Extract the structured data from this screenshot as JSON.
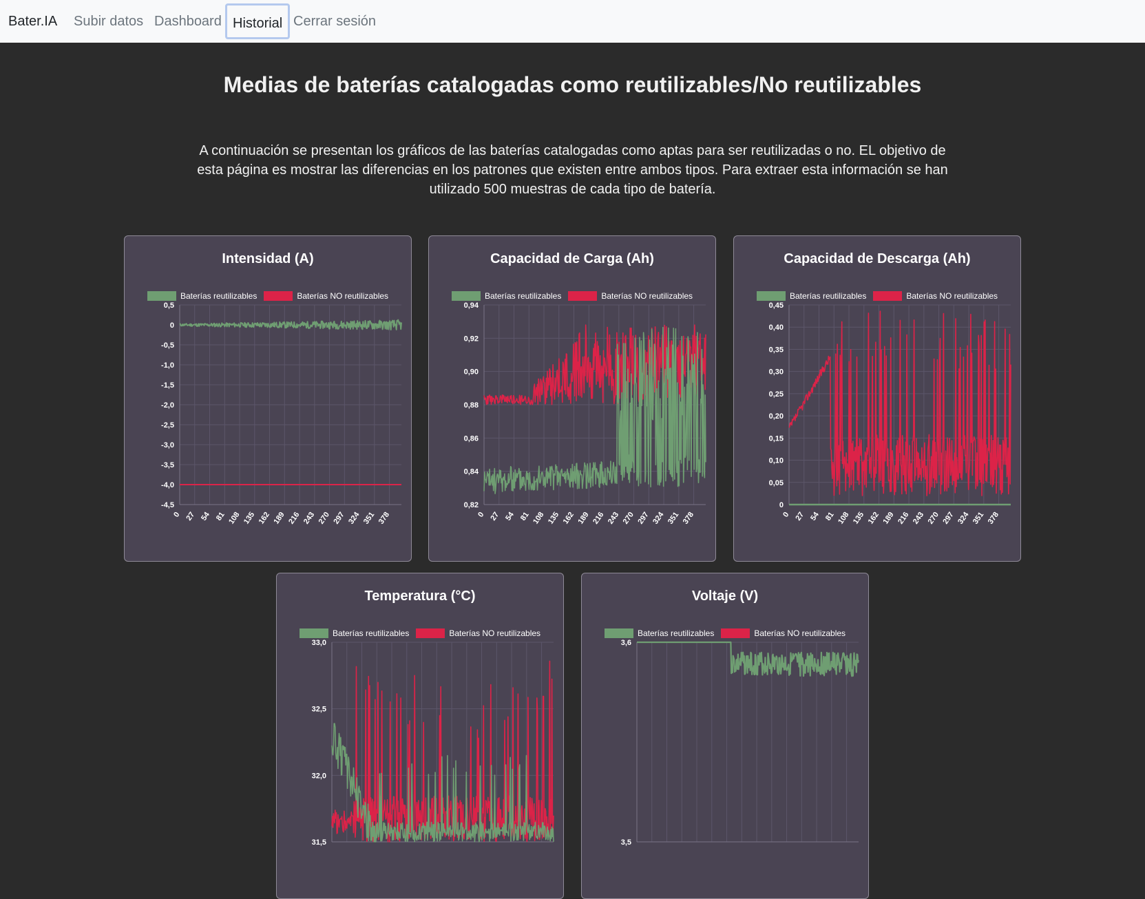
{
  "navbar": {
    "brand": "Bater.IA",
    "links": [
      "Subir datos",
      "Dashboard",
      "Historial",
      "Cerrar sesión"
    ],
    "active": "Historial"
  },
  "page": {
    "title": "Medias de baterías catalogadas como reutilizables/No reutilizables",
    "intro": "A continuación se presentan los gráficos de las baterías catalogadas como aptas para ser reutilizadas o no. EL objetivo de esta página es mostrar las diferencias en los patrones que existen entre ambos tipos. Para extraer esta información se han utilizado 500 muestras de cada tipo de batería."
  },
  "colors": {
    "reusable": "#6f9e72",
    "non_reusable": "#dc2348",
    "card_bg": "#4a4453",
    "page_bg": "#2b2b2b"
  },
  "chart_data": [
    {
      "type": "line",
      "title": "Intensidad (A)",
      "series": [
        {
          "name": "Baterías reutilizables",
          "y_estimate": 0.0
        },
        {
          "name": "Baterías NO reutilizables",
          "y_estimate": -4.0
        }
      ],
      "x_ticks": [
        "0",
        "27",
        "54",
        "81",
        "108",
        "135",
        "162",
        "189",
        "216",
        "243",
        "270",
        "297",
        "324",
        "351",
        "378"
      ],
      "y_ticks": [
        "0,5",
        "0",
        "-0,5",
        "-1,0",
        "-1,5",
        "-2,0",
        "-2,5",
        "-3,0",
        "-3,5",
        "-4,0",
        "-4,5"
      ],
      "ylim": [
        -4.5,
        0.5
      ],
      "grid": true,
      "legend": "top"
    },
    {
      "type": "line",
      "title": "Capacidad de Carga (Ah)",
      "series": [
        {
          "name": "Baterías reutilizables",
          "y_estimate_start": 0.83,
          "y_estimate_end_range": [
            0.83,
            0.927
          ]
        },
        {
          "name": "Baterías NO reutilizables",
          "y_estimate_start": 0.882,
          "y_estimate_end_range": [
            0.88,
            0.928
          ]
        }
      ],
      "x_ticks": [
        "0",
        "27",
        "54",
        "81",
        "108",
        "135",
        "162",
        "189",
        "216",
        "243",
        "270",
        "297",
        "324",
        "351",
        "378"
      ],
      "y_ticks": [
        "0,94",
        "0,92",
        "0,90",
        "0,88",
        "0,86",
        "0,84",
        "0,82"
      ],
      "ylim": [
        0.82,
        0.94
      ],
      "grid": true,
      "legend": "top"
    },
    {
      "type": "line",
      "title": "Capacidad de Descarga (Ah)",
      "series": [
        {
          "name": "Baterías reutilizables",
          "y_estimate": 0.0
        },
        {
          "name": "Baterías NO reutilizables",
          "y_estimate_start": 0.17,
          "y_estimate_peak": 0.44
        }
      ],
      "x_ticks": [
        "0",
        "27",
        "54",
        "81",
        "108",
        "135",
        "162",
        "189",
        "216",
        "243",
        "270",
        "297",
        "324",
        "351",
        "378"
      ],
      "y_ticks": [
        "0,45",
        "0,40",
        "0,35",
        "0,30",
        "0,25",
        "0,20",
        "0,15",
        "0,10",
        "0,05",
        "0"
      ],
      "ylim": [
        0,
        0.45
      ],
      "grid": true,
      "legend": "top"
    },
    {
      "type": "line",
      "title": "Temperatura (°C)",
      "series": [
        {
          "name": "Baterías reutilizables",
          "y_estimate_start": 32.2
        },
        {
          "name": "Baterías NO reutilizables",
          "y_estimate_start": 31.6
        }
      ],
      "x_ticks": [],
      "y_ticks": [
        "33,0",
        "32,5",
        "32,0",
        "31,5"
      ],
      "ylim": [
        31.5,
        33.0
      ],
      "grid": true,
      "legend": "top"
    },
    {
      "type": "line",
      "title": "Voltaje (V)",
      "series": [
        {
          "name": "Baterías reutilizables",
          "y_estimate": 3.6
        },
        {
          "name": "Baterías NO reutilizables"
        }
      ],
      "x_ticks": [],
      "y_ticks": [
        "3,6",
        "3,5"
      ],
      "ylim": [
        3.5,
        3.6
      ],
      "grid": true,
      "legend": "top"
    }
  ]
}
